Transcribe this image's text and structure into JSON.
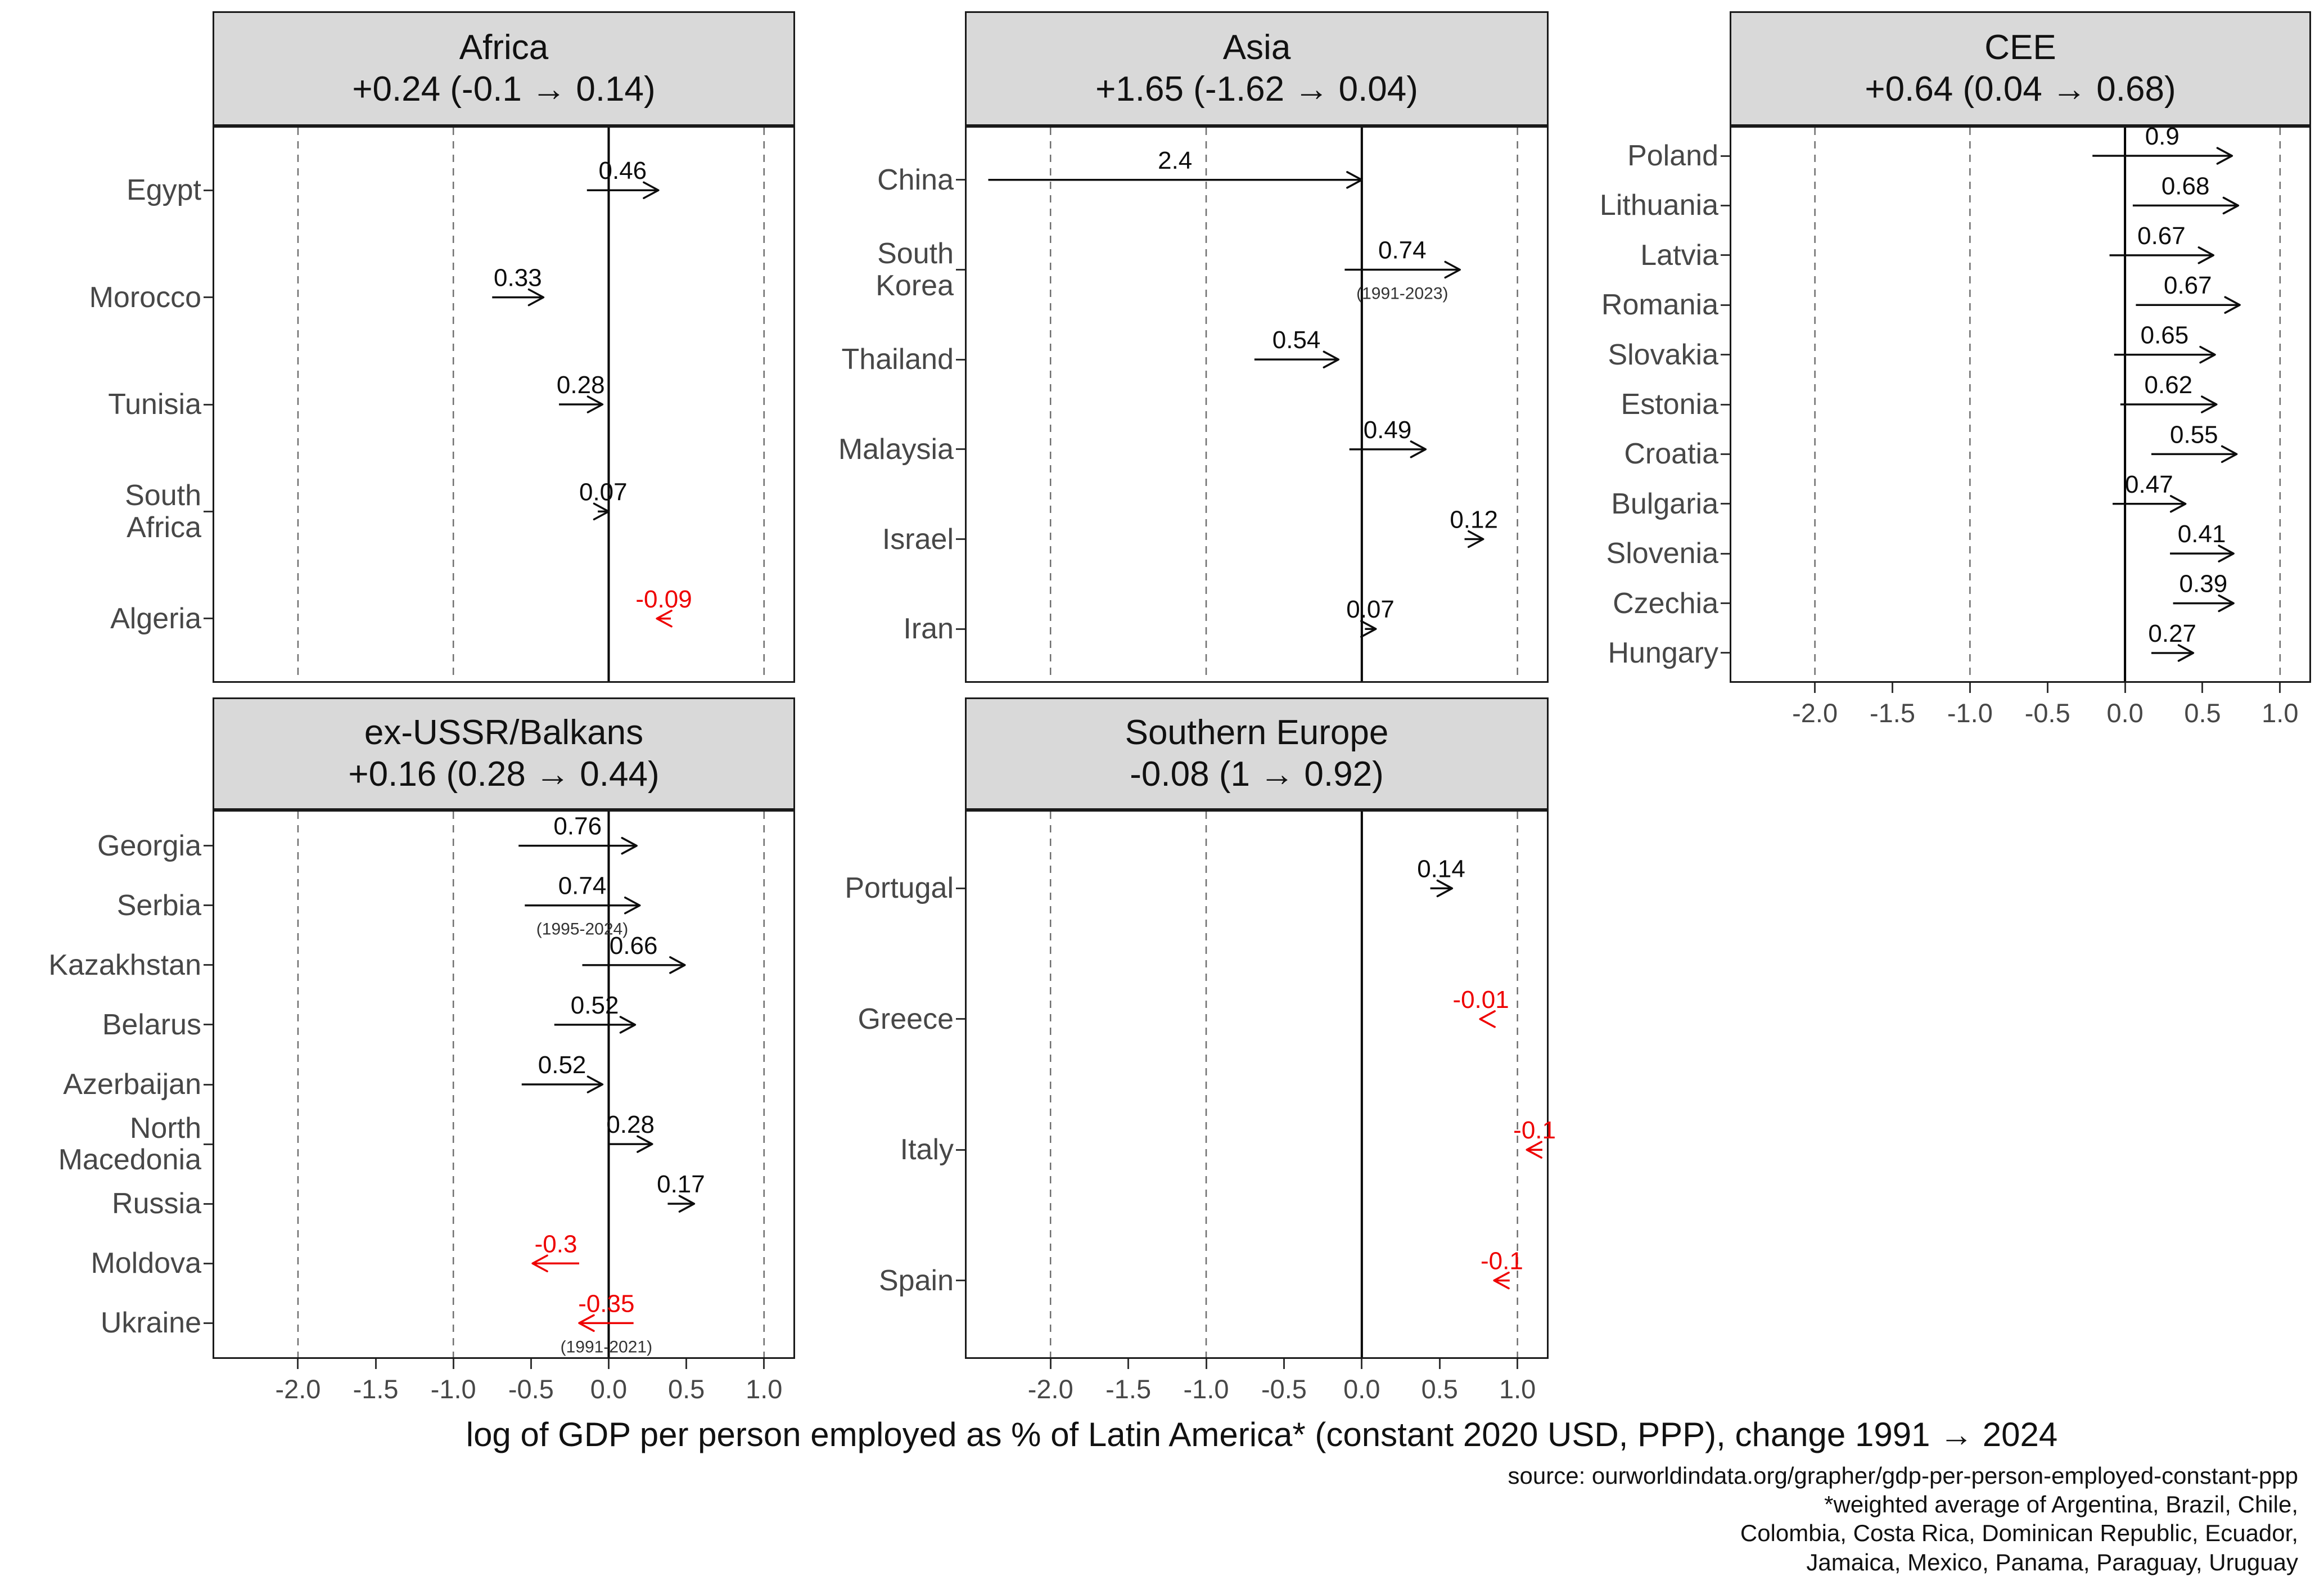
{
  "colors": {
    "page_bg": "#ffffff",
    "panel_bg": "#ffffff",
    "panel_border": "#1a1a1a",
    "strip_bg": "#d9d9d9",
    "strip_text": "#111111",
    "grid_dashed": "#6f6f6f",
    "zero_line": "#000000",
    "arrow_positive": "#0d0d0d",
    "arrow_negative": "#ee0000",
    "axis_text": "#474747",
    "note_text": "#333333"
  },
  "chart_data": {
    "type": "arrow",
    "xlabel": "log of GDP per person employed as % of Latin America* (constant 2020 USD, PPP), change 1991 → 2024",
    "x_domain": [
      -2.55,
      1.2
    ],
    "x_ticks": [
      -2.0,
      -1.5,
      -1.0,
      -0.5,
      0.0,
      0.5,
      1.0
    ],
    "x_tick_labels": [
      "-2.0",
      "-1.5",
      "-1.0",
      "-0.5",
      "0.0",
      "0.5",
      "1.0"
    ],
    "grid_dashed_at": [
      -2,
      -1,
      1
    ],
    "zero_line_at": 0,
    "panels": [
      {
        "title": "Africa",
        "subtitle": "+0.24 (-0.1 → 0.14)",
        "rows": [
          {
            "country": "Egypt",
            "change": 0.46,
            "label": "0.46",
            "start": -0.14,
            "end": 0.32,
            "negative": false
          },
          {
            "country": "Morocco",
            "change": 0.33,
            "label": "0.33",
            "start": -0.75,
            "end": -0.42,
            "negative": false
          },
          {
            "country": "Tunisia",
            "change": 0.28,
            "label": "0.28",
            "start": -0.32,
            "end": -0.04,
            "negative": false
          },
          {
            "country": "South Africa",
            "change": 0.07,
            "label": "0.07",
            "start": -0.07,
            "end": 0.0,
            "negative": false
          },
          {
            "country": "Algeria",
            "change": -0.09,
            "label": "-0.09",
            "start": 0.4,
            "end": 0.31,
            "negative": true
          }
        ]
      },
      {
        "title": "Asia",
        "subtitle": "+1.65 (-1.62 → 0.04)",
        "rows": [
          {
            "country": "China",
            "change": 2.4,
            "label": "2.4",
            "start": -2.4,
            "end": 0.0,
            "negative": false
          },
          {
            "country": "South Korea",
            "change": 0.74,
            "label": "0.74",
            "start": -0.11,
            "end": 0.63,
            "negative": false,
            "note": "(1991-2023)"
          },
          {
            "country": "Thailand",
            "change": 0.54,
            "label": "0.54",
            "start": -0.69,
            "end": -0.15,
            "negative": false
          },
          {
            "country": "Malaysia",
            "change": 0.49,
            "label": "0.49",
            "start": -0.08,
            "end": 0.41,
            "negative": false
          },
          {
            "country": "Israel",
            "change": 0.12,
            "label": "0.12",
            "start": 0.66,
            "end": 0.78,
            "negative": false
          },
          {
            "country": "Iran",
            "change": 0.07,
            "label": "0.07",
            "start": 0.02,
            "end": 0.09,
            "negative": false
          }
        ]
      },
      {
        "title": "CEE",
        "subtitle": "+0.64 (0.04 → 0.68)",
        "rows": [
          {
            "country": "Poland",
            "change": 0.9,
            "label": "0.9",
            "start": -0.21,
            "end": 0.69,
            "negative": false
          },
          {
            "country": "Lithuania",
            "change": 0.68,
            "label": "0.68",
            "start": 0.05,
            "end": 0.73,
            "negative": false
          },
          {
            "country": "Latvia",
            "change": 0.67,
            "label": "0.67",
            "start": -0.1,
            "end": 0.57,
            "negative": false
          },
          {
            "country": "Romania",
            "change": 0.67,
            "label": "0.67",
            "start": 0.07,
            "end": 0.74,
            "negative": false
          },
          {
            "country": "Slovakia",
            "change": 0.65,
            "label": "0.65",
            "start": -0.07,
            "end": 0.58,
            "negative": false
          },
          {
            "country": "Estonia",
            "change": 0.62,
            "label": "0.62",
            "start": -0.03,
            "end": 0.59,
            "negative": false
          },
          {
            "country": "Croatia",
            "change": 0.55,
            "label": "0.55",
            "start": 0.17,
            "end": 0.72,
            "negative": false
          },
          {
            "country": "Bulgaria",
            "change": 0.47,
            "label": "0.47",
            "start": -0.08,
            "end": 0.39,
            "negative": false
          },
          {
            "country": "Slovenia",
            "change": 0.41,
            "label": "0.41",
            "start": 0.29,
            "end": 0.7,
            "negative": false
          },
          {
            "country": "Czechia",
            "change": 0.39,
            "label": "0.39",
            "start": 0.31,
            "end": 0.7,
            "negative": false
          },
          {
            "country": "Hungary",
            "change": 0.27,
            "label": "0.27",
            "start": 0.17,
            "end": 0.44,
            "negative": false
          }
        ]
      },
      {
        "title": "ex-USSR/Balkans",
        "subtitle": "+0.16 (0.28 → 0.44)",
        "rows": [
          {
            "country": "Georgia",
            "change": 0.76,
            "label": "0.76",
            "start": -0.58,
            "end": 0.18,
            "negative": false
          },
          {
            "country": "Serbia",
            "change": 0.74,
            "label": "0.74",
            "start": -0.54,
            "end": 0.2,
            "negative": false,
            "note": "(1995-2024)"
          },
          {
            "country": "Kazakhstan",
            "change": 0.66,
            "label": "0.66",
            "start": -0.17,
            "end": 0.49,
            "negative": false
          },
          {
            "country": "Belarus",
            "change": 0.52,
            "label": "0.52",
            "start": -0.35,
            "end": 0.17,
            "negative": false
          },
          {
            "country": "Azerbaijan",
            "change": 0.52,
            "label": "0.52",
            "start": -0.56,
            "end": -0.04,
            "negative": false
          },
          {
            "country": "North Macedonia",
            "change": 0.28,
            "label": "0.28",
            "start": 0.0,
            "end": 0.28,
            "negative": false
          },
          {
            "country": "Russia",
            "change": 0.17,
            "label": "0.17",
            "start": 0.38,
            "end": 0.55,
            "negative": false
          },
          {
            "country": "Moldova",
            "change": -0.3,
            "label": "-0.3",
            "start": -0.19,
            "end": -0.49,
            "negative": true
          },
          {
            "country": "Ukraine",
            "change": -0.35,
            "label": "-0.35",
            "start": 0.16,
            "end": -0.19,
            "negative": true,
            "note": "(1991-2021)"
          }
        ]
      },
      {
        "title": "Southern Europe",
        "subtitle": "-0.08 (1 → 0.92)",
        "rows": [
          {
            "country": "Portugal",
            "change": 0.14,
            "label": "0.14",
            "start": 0.44,
            "end": 0.58,
            "negative": false
          },
          {
            "country": "Greece",
            "change": -0.01,
            "label": "-0.01",
            "start": 0.77,
            "end": 0.76,
            "negative": true
          },
          {
            "country": "Italy",
            "change": -0.1,
            "label": "-0.1",
            "start": 1.16,
            "end": 1.06,
            "negative": true
          },
          {
            "country": "Spain",
            "change": -0.1,
            "label": "-0.1",
            "start": 0.95,
            "end": 0.85,
            "negative": true
          }
        ]
      }
    ]
  },
  "footer": {
    "lines": [
      "source: ourworldindata.org/grapher/gdp-per-person-employed-constant-ppp",
      "*weighted average of Argentina, Brazil, Chile,",
      "Colombia, Costa Rica, Dominican Republic, Ecuador,",
      "Jamaica, Mexico, Panama, Paraguay, Uruguay"
    ]
  }
}
